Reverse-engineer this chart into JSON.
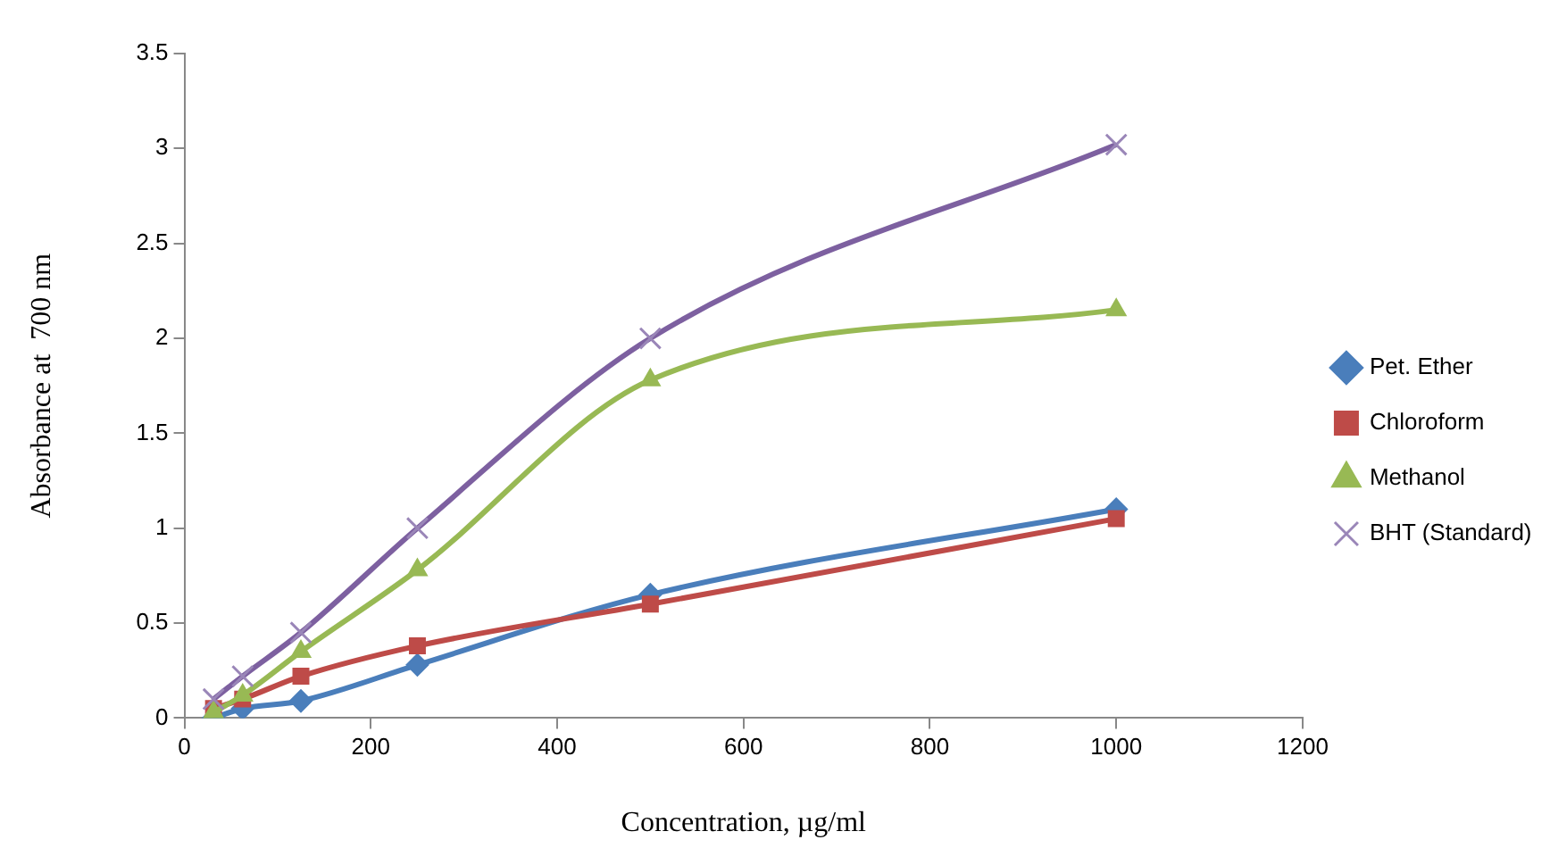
{
  "chart_data": {
    "type": "line",
    "xlabel": "Concentration, µg/ml",
    "ylabel": "Absorbance at  700 nm",
    "x": [
      31.25,
      62.5,
      125,
      250,
      500,
      1000
    ],
    "xlim": [
      0,
      1200
    ],
    "xticks": [
      0,
      200,
      400,
      600,
      800,
      1000,
      1200
    ],
    "ylim": [
      0,
      3.5
    ],
    "yticks": [
      0,
      0.5,
      1,
      1.5,
      2,
      2.5,
      3,
      3.5
    ],
    "grid": false,
    "legend": "right",
    "series": [
      {
        "name": "Pet. Ether",
        "color": "#4a7ebb",
        "marker": "diamond",
        "values": [
          0,
          0.05,
          0.09,
          0.28,
          0.65,
          1.1
        ]
      },
      {
        "name": "Chloroform",
        "color": "#be4b48",
        "marker": "square",
        "values": [
          0.05,
          0.1,
          0.22,
          0.38,
          0.6,
          1.05
        ]
      },
      {
        "name": "Methanol",
        "color": "#98b954",
        "marker": "triangle",
        "values": [
          0.03,
          0.12,
          0.35,
          0.78,
          1.78,
          2.15
        ]
      },
      {
        "name": "BHT (Standard)",
        "color": "#7d60a0",
        "marker": "cross",
        "values": [
          0.1,
          0.22,
          0.45,
          1.0,
          2.0,
          3.02
        ]
      }
    ]
  }
}
